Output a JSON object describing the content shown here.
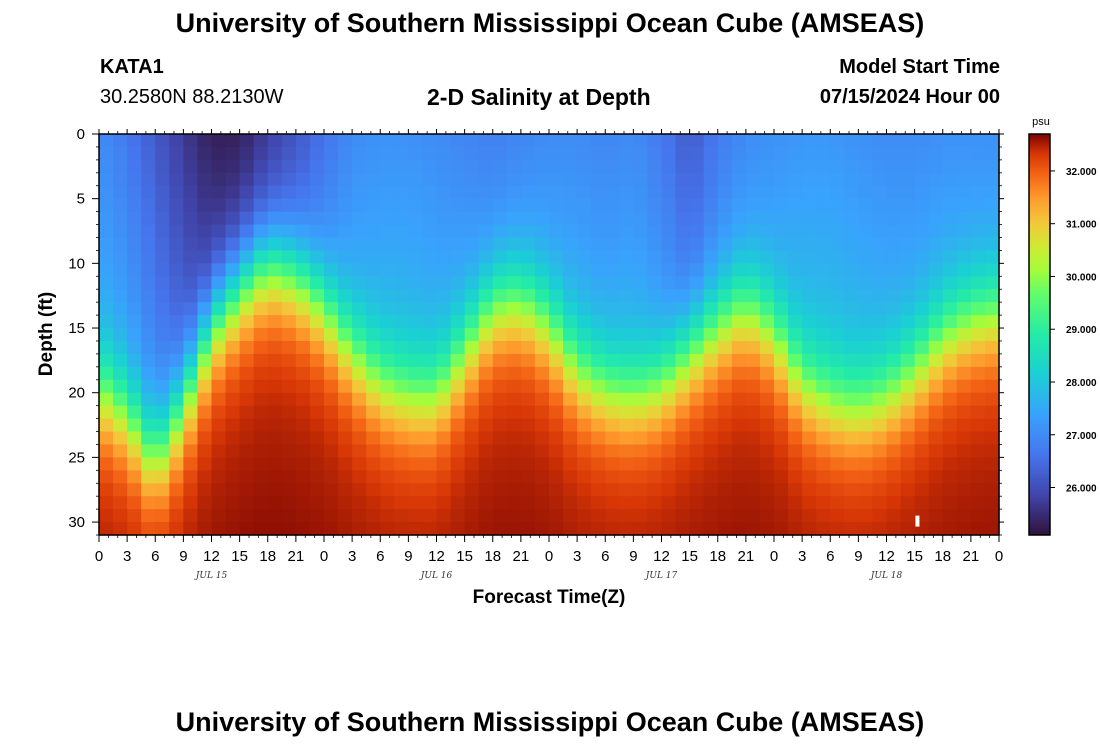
{
  "header": {
    "title": "University of Southern Mississippi Ocean Cube (AMSEAS)",
    "station": "KATA1",
    "coords": "30.2580N  88.2130W",
    "subtitle": "2-D Salinity at Depth",
    "model_start_label": "Model Start Time",
    "model_start_value": "07/15/2024 Hour 00"
  },
  "footer": {
    "title": "University of Southern Mississippi Ocean Cube (AMSEAS)"
  },
  "chart_data": {
    "type": "heatmap",
    "title": "2-D Salinity at Depth",
    "xlabel": "Forecast Time(Z)",
    "ylabel": "Depth (ft)",
    "x_hours_range": [
      0,
      96
    ],
    "x_tick_labels": [
      "0",
      "3",
      "6",
      "9",
      "12",
      "15",
      "18",
      "21",
      "0",
      "3",
      "6",
      "9",
      "12",
      "15",
      "18",
      "21",
      "0",
      "3",
      "6",
      "9",
      "12",
      "15",
      "18",
      "21",
      "0",
      "3",
      "6",
      "9",
      "12",
      "15",
      "18",
      "21",
      "0"
    ],
    "date_labels": [
      {
        "hour": 12,
        "label": "JUL 15"
      },
      {
        "hour": 36,
        "label": "JUL 16"
      },
      {
        "hour": 60,
        "label": "JUL 17"
      },
      {
        "hour": 84,
        "label": "JUL 18"
      }
    ],
    "ylim": [
      0,
      31
    ],
    "y_ticks": [
      0,
      5,
      10,
      15,
      20,
      25,
      30
    ],
    "colorbar": {
      "unit": "psu",
      "range": [
        25.1,
        32.7
      ],
      "ticks": [
        "32.000",
        "31.000",
        "30.000",
        "29.000",
        "28.000",
        "27.000",
        "26.000"
      ],
      "tick_values": [
        32,
        31,
        30,
        29,
        28,
        27,
        26
      ]
    },
    "halocline_depth_ft": {
      "hours": [
        0,
        3,
        6,
        9,
        12,
        15,
        18,
        21,
        24,
        27,
        30,
        33,
        36,
        39,
        42,
        45,
        48,
        51,
        54,
        57,
        60,
        63,
        66,
        69,
        72,
        75,
        78,
        81,
        84,
        87,
        90,
        93,
        96
      ],
      "depth": [
        20,
        22,
        25.5,
        21,
        15,
        12,
        10,
        11,
        13.5,
        17,
        19.5,
        20.5,
        20.5,
        17,
        13.5,
        13,
        15,
        18.5,
        20,
        20.5,
        19.5,
        17,
        15,
        13.5,
        15.5,
        19.5,
        21,
        21.5,
        20.5,
        18.5,
        16,
        14.5,
        14
      ]
    },
    "surface_salinity_psu": {
      "hours": [
        0,
        3,
        6,
        9,
        12,
        15,
        18,
        21,
        24,
        27,
        30,
        33,
        36,
        39,
        42,
        45,
        48,
        51,
        54,
        57,
        60,
        63,
        66,
        69,
        72,
        75,
        78,
        81,
        84,
        87,
        90,
        93,
        96
      ],
      "value": [
        27.0,
        26.7,
        26.2,
        25.7,
        25.3,
        25.3,
        25.7,
        26.1,
        26.6,
        27.0,
        27.1,
        27.1,
        27.0,
        26.9,
        26.8,
        26.9,
        27.0,
        27.0,
        26.9,
        27.0,
        26.7,
        26.2,
        26.7,
        27.0,
        27.1,
        27.2,
        27.2,
        27.1,
        27.0,
        27.0,
        27.1,
        27.1,
        27.1
      ]
    },
    "bottom_salinity_psu": 32.4
  }
}
